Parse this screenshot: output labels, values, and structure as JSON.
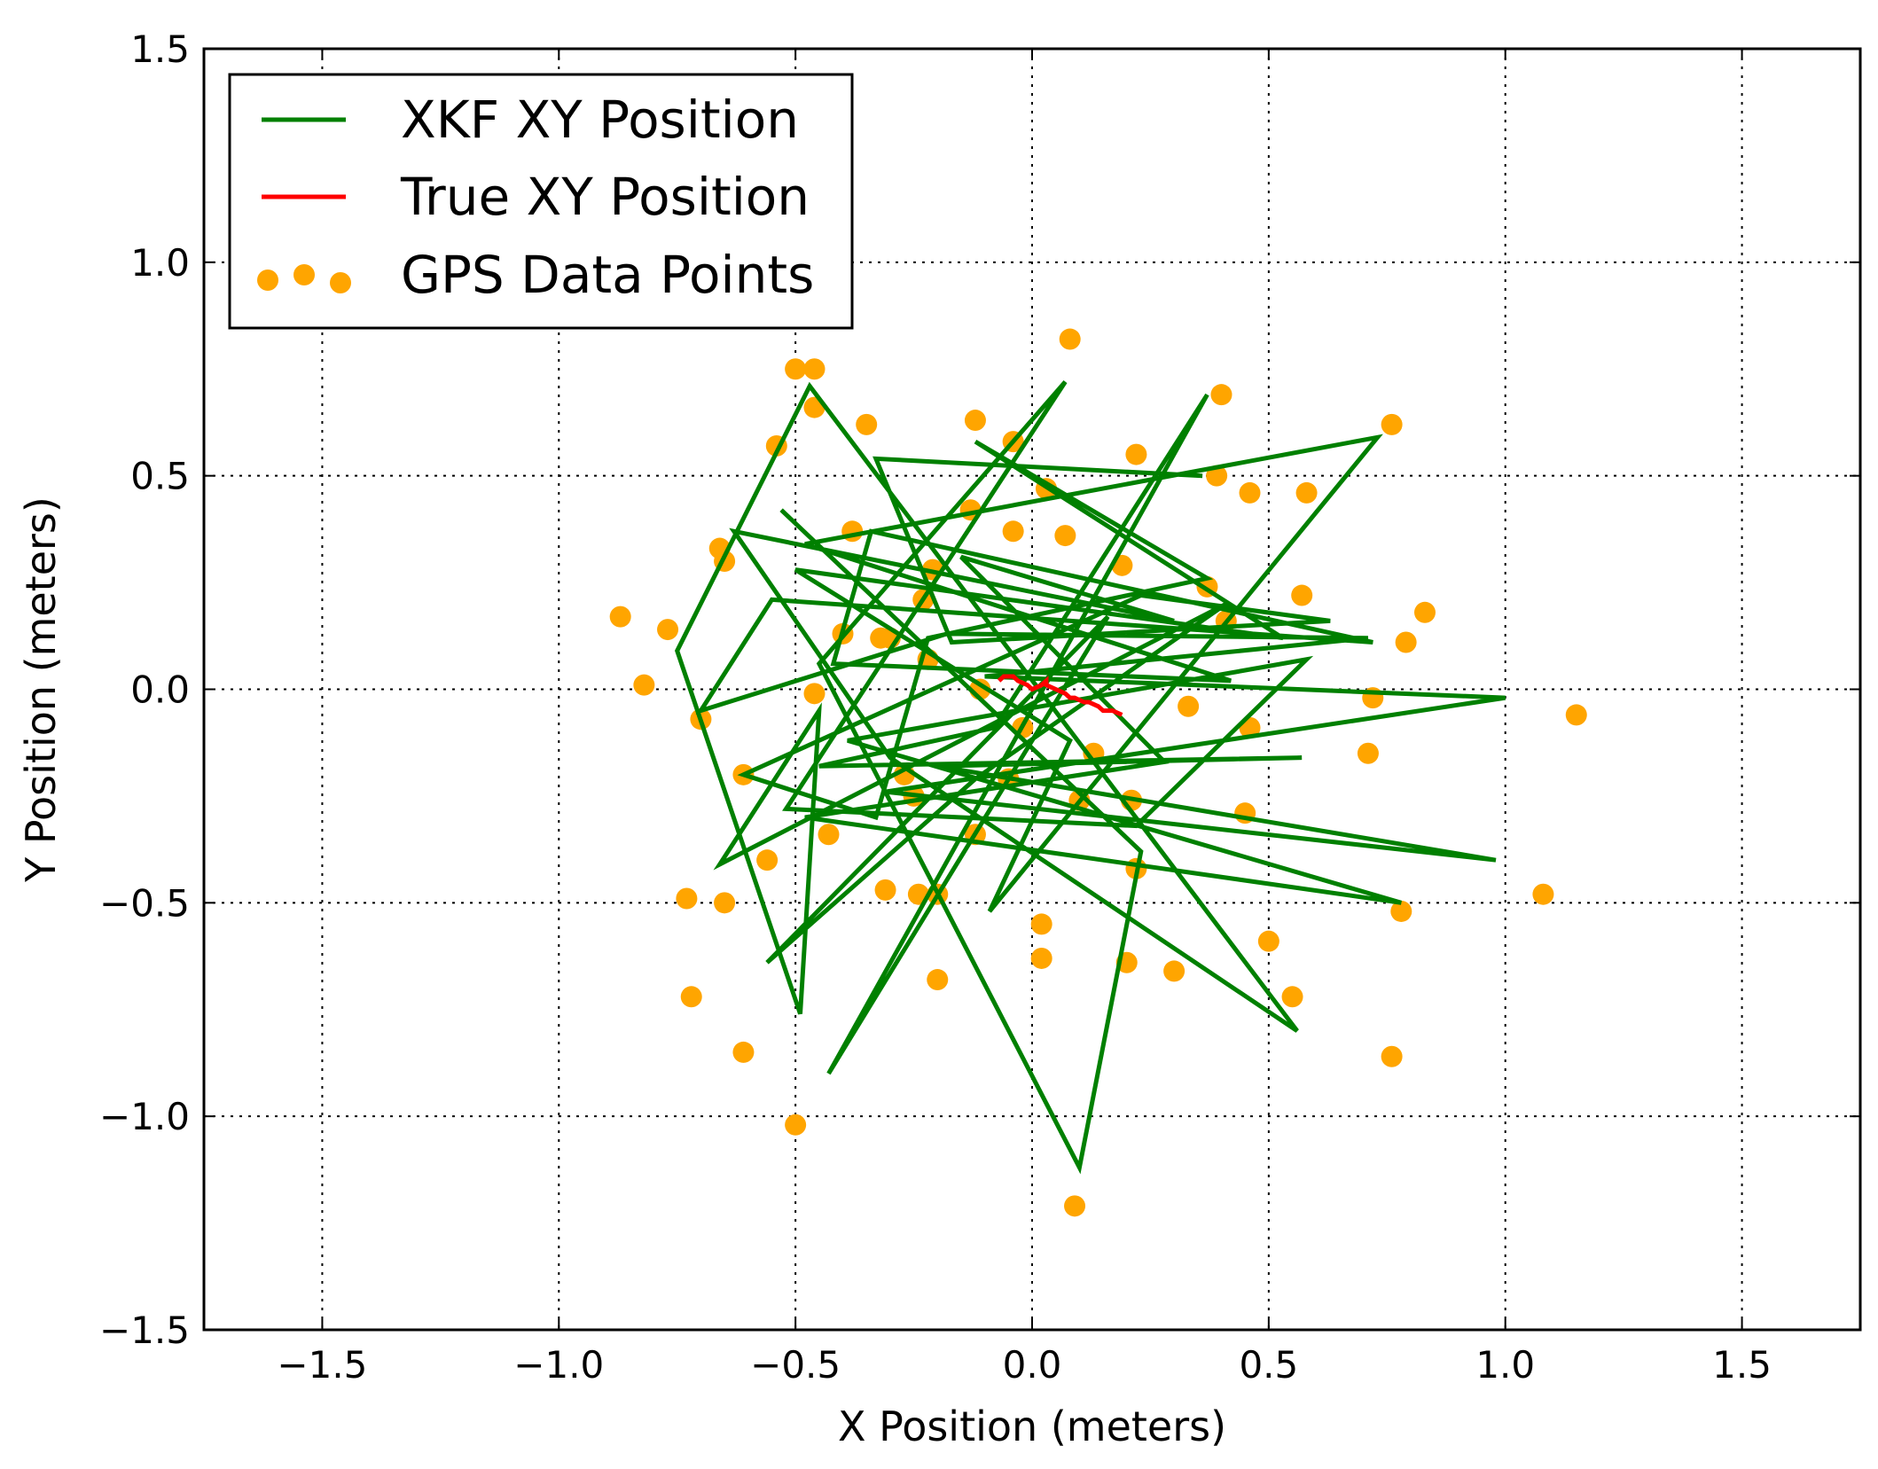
{
  "chart_data": {
    "type": "scatter",
    "xlabel": "X Position (meters)",
    "ylabel": "Y Position (meters)",
    "xlim": [
      -1.75,
      1.75
    ],
    "ylim": [
      -1.5,
      1.5
    ],
    "xticks": [
      -1.5,
      -1.0,
      -0.5,
      0.0,
      0.5,
      1.0,
      1.5
    ],
    "yticks": [
      -1.5,
      -1.0,
      -0.5,
      0.0,
      0.5,
      1.0,
      1.5
    ],
    "xtick_labels": [
      "−1.5",
      "−1.0",
      "−0.5",
      "0.0",
      "0.5",
      "1.0",
      "1.5"
    ],
    "ytick_labels": [
      "−1.5",
      "−1.0",
      "−0.5",
      "0.0",
      "0.5",
      "1.0",
      "1.5"
    ],
    "grid": true,
    "legend_position": "top-left",
    "series": [
      {
        "name": "XKF XY Position",
        "kind": "line",
        "color": "#008000",
        "x": [
          0.36,
          -0.33,
          -0.17,
          0.63,
          0.23,
          -0.61,
          -0.33,
          -0.22,
          0.37,
          -0.12,
          0.53,
          -0.5,
          0.08,
          -0.09,
          0.73,
          -0.48,
          0.42,
          -0.42,
          -0.34,
          0.72,
          -0.55,
          -0.7,
          -0.18,
          0.71,
          -0.1,
          1.0,
          -0.31,
          0.98,
          -0.2,
          0.57,
          -0.45,
          -0.08,
          0.37,
          -0.43,
          0.16,
          -0.56,
          -0.12,
          0.41,
          -0.66,
          -0.45,
          -0.49,
          -0.75,
          -0.47,
          0.56,
          -0.3,
          -0.63,
          0.3,
          -0.15,
          0.28,
          -0.48,
          0.78,
          -0.39,
          0.58,
          0.22,
          -0.52,
          0.07,
          -0.45,
          0.1,
          0.23,
          -0.53
        ],
        "y": [
          0.5,
          0.54,
          0.11,
          0.16,
          0.22,
          -0.2,
          -0.3,
          0.12,
          0.26,
          0.58,
          0.12,
          0.28,
          -0.12,
          -0.52,
          0.59,
          0.34,
          0.02,
          0.06,
          0.37,
          0.11,
          0.21,
          -0.05,
          0.13,
          0.12,
          0.03,
          -0.02,
          -0.24,
          -0.4,
          -0.18,
          -0.16,
          -0.18,
          -0.09,
          0.69,
          -0.9,
          0.17,
          -0.64,
          -0.21,
          0.2,
          -0.41,
          -0.05,
          -0.76,
          0.09,
          0.71,
          -0.8,
          -0.16,
          0.37,
          0.16,
          0.31,
          -0.17,
          -0.3,
          -0.5,
          -0.12,
          0.07,
          -0.32,
          -0.28,
          0.72,
          0.06,
          -1.12,
          -0.38,
          0.42
        ]
      },
      {
        "name": "True XY Position",
        "kind": "line",
        "color": "#ff0000",
        "x": [
          -0.07,
          -0.06,
          -0.04,
          -0.03,
          -0.01,
          0.0,
          0.02,
          0.03,
          0.03,
          0.05,
          0.07,
          0.08,
          0.09,
          0.11,
          0.12,
          0.14,
          0.15,
          0.17,
          0.19
        ],
        "y": [
          0.02,
          0.03,
          0.03,
          0.02,
          0.01,
          0.0,
          0.01,
          0.02,
          0.01,
          0.0,
          -0.01,
          -0.02,
          -0.02,
          -0.03,
          -0.03,
          -0.04,
          -0.05,
          -0.05,
          -0.06
        ]
      },
      {
        "name": "GPS Data Points",
        "kind": "scatter",
        "color": "#ffa500",
        "x": [
          0.08,
          -0.5,
          -0.46,
          0.4,
          -0.46,
          -0.35,
          -0.12,
          -0.54,
          -0.04,
          0.22,
          0.76,
          0.39,
          0.46,
          0.58,
          -0.13,
          -0.38,
          -0.04,
          -0.66,
          -0.65,
          -0.21,
          -0.87,
          -0.77,
          0.57,
          0.83,
          -0.4,
          -0.32,
          -0.3,
          0.79,
          -0.22,
          -0.82,
          -0.46,
          0.72,
          1.15,
          -0.7,
          0.46,
          -0.61,
          0.71,
          -0.25,
          0.45,
          -0.43,
          -0.56,
          -0.73,
          -0.65,
          -0.31,
          -0.24,
          -0.2,
          0.78,
          0.02,
          0.02,
          0.5,
          0.2,
          0.3,
          -0.2,
          0.55,
          -0.72,
          -0.61,
          0.76,
          -0.5,
          0.09,
          1.08,
          0.03,
          0.22,
          0.1,
          -0.05,
          0.21,
          -0.12,
          0.07,
          -0.23,
          -0.11,
          0.19,
          -0.27,
          0.33,
          0.41,
          0.37,
          -0.02,
          0.13
        ],
        "y": [
          0.82,
          0.75,
          0.75,
          0.69,
          0.66,
          0.62,
          0.63,
          0.57,
          0.58,
          0.55,
          0.62,
          0.5,
          0.46,
          0.46,
          0.42,
          0.37,
          0.37,
          0.33,
          0.3,
          0.28,
          0.17,
          0.14,
          0.22,
          0.18,
          0.13,
          0.12,
          0.12,
          0.11,
          0.07,
          0.01,
          -0.01,
          -0.02,
          -0.06,
          -0.07,
          -0.09,
          -0.2,
          -0.15,
          -0.25,
          -0.29,
          -0.34,
          -0.4,
          -0.49,
          -0.5,
          -0.47,
          -0.48,
          -0.48,
          -0.52,
          -0.55,
          -0.63,
          -0.59,
          -0.64,
          -0.66,
          -0.68,
          -0.72,
          -0.72,
          -0.85,
          -0.86,
          -1.02,
          -1.21,
          -0.48,
          0.47,
          -0.42,
          -0.26,
          -0.21,
          -0.26,
          -0.34,
          0.36,
          0.21,
          0.0,
          0.29,
          -0.2,
          -0.04,
          0.16,
          0.24,
          -0.09,
          -0.15
        ]
      }
    ]
  }
}
